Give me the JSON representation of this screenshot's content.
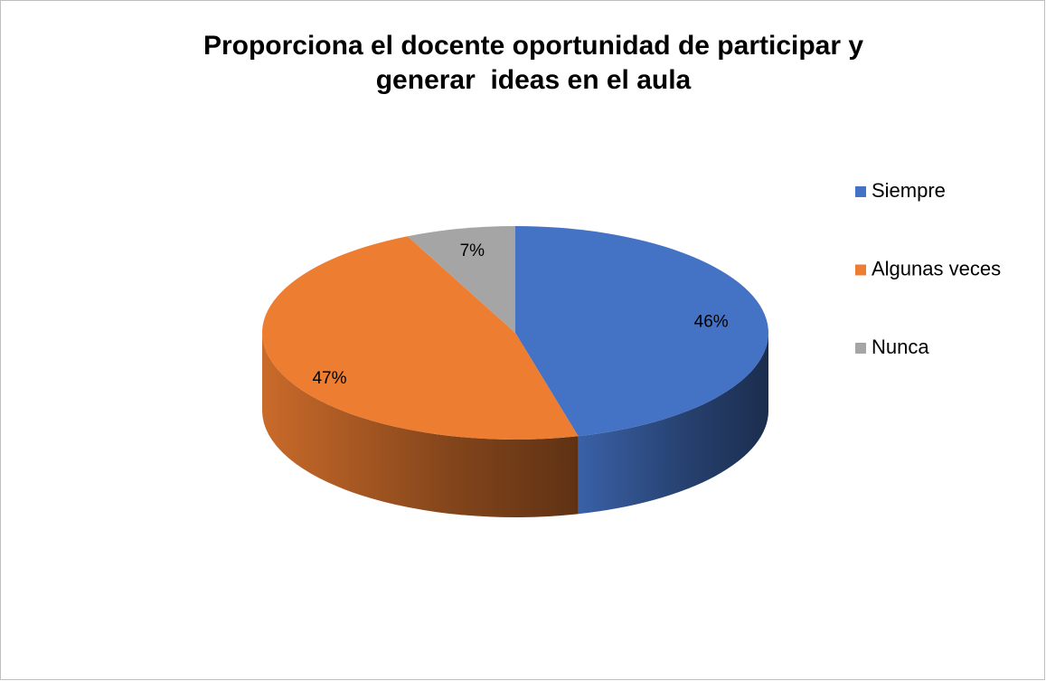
{
  "chart_data": {
    "type": "pie",
    "title": "Proporciona el docente oportunidad de participar y generar  ideas en el aula",
    "categories": [
      "Siempre",
      "Algunas veces",
      "Nunca"
    ],
    "values": [
      46,
      47,
      7
    ],
    "value_labels": [
      "46%",
      "47%",
      "7%"
    ],
    "colors": [
      "#4472c4",
      "#ed7d31",
      "#a5a5a5"
    ],
    "legend": "right"
  }
}
